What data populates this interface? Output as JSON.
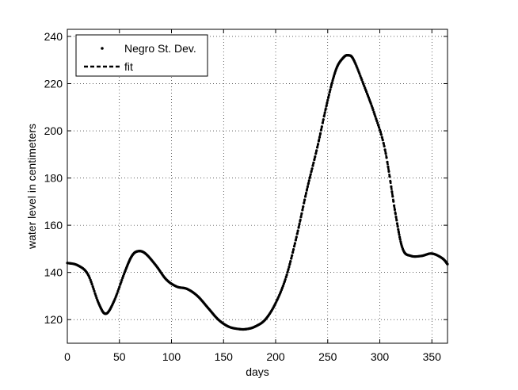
{
  "chart_data": {
    "type": "line",
    "title": "",
    "xlabel": "days",
    "ylabel": "water level in centimeters",
    "xlim": [
      0,
      365
    ],
    "ylim": [
      110,
      243
    ],
    "xticks": [
      0,
      50,
      100,
      150,
      200,
      250,
      300,
      350
    ],
    "yticks": [
      120,
      140,
      160,
      180,
      200,
      220,
      240
    ],
    "grid": true,
    "legend_position": "top-left",
    "series": [
      {
        "name": "Negro St. Dev.",
        "style": "points",
        "color": "#000000",
        "x": [
          0,
          10,
          20,
          30,
          37,
          45,
          55,
          62,
          68,
          75,
          85,
          95,
          105,
          115,
          125,
          135,
          145,
          155,
          165,
          172,
          180,
          190,
          200,
          210,
          220,
          230,
          240,
          250,
          258,
          265,
          270,
          275,
          285,
          295,
          305,
          315,
          322,
          330,
          340,
          350,
          360,
          365
        ],
        "y": [
          144,
          143,
          139,
          127,
          122.5,
          128,
          140,
          147,
          149,
          148,
          143,
          137,
          134,
          133,
          130,
          125,
          120,
          117,
          116,
          116,
          117,
          120,
          127,
          138,
          155,
          175,
          193,
          213,
          226,
          231,
          232,
          230,
          219,
          207,
          192,
          165,
          150,
          147,
          147,
          148,
          146,
          143.5
        ]
      },
      {
        "name": "fit",
        "style": "dashed",
        "color": "#000000",
        "x": [
          0,
          10,
          20,
          30,
          37,
          45,
          55,
          62,
          68,
          75,
          85,
          95,
          105,
          115,
          125,
          135,
          145,
          155,
          165,
          172,
          180,
          190,
          200,
          210,
          220,
          230,
          240,
          250,
          258,
          265,
          270,
          275,
          285,
          295,
          305,
          315,
          322,
          330,
          340,
          350,
          360,
          365
        ],
        "y": [
          144,
          143,
          139,
          127,
          122.5,
          128,
          140,
          147,
          149,
          148,
          143,
          137,
          134,
          133,
          130,
          125,
          120,
          117,
          116,
          116,
          117,
          120,
          127,
          138,
          155,
          175,
          193,
          213,
          226,
          231,
          232,
          230,
          219,
          207,
          192,
          165,
          150,
          147,
          147,
          148,
          146,
          143.5
        ]
      }
    ]
  }
}
